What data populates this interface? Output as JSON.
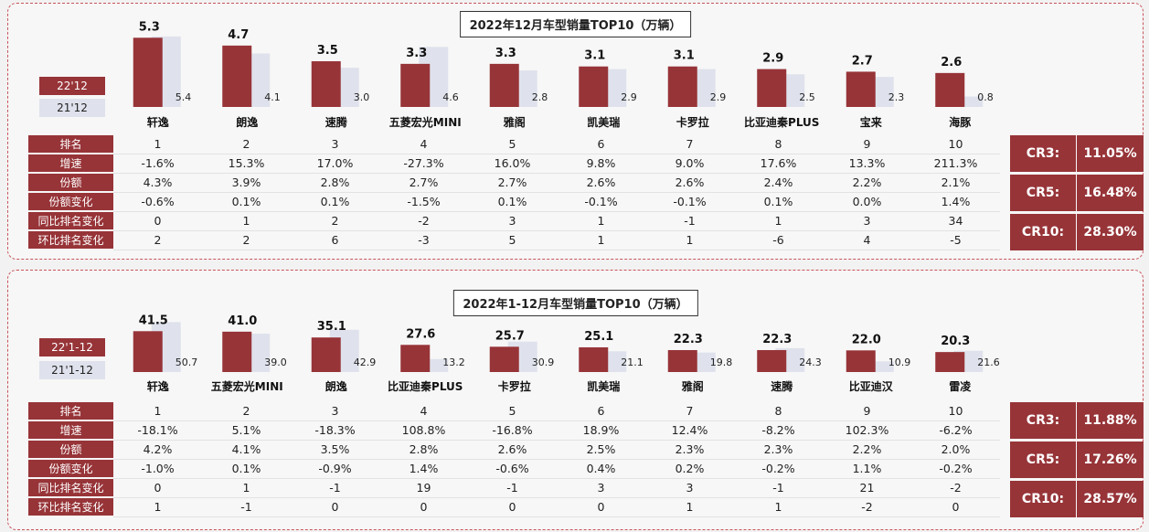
{
  "colors": {
    "current": "#973438",
    "previous": "#dfe2ec"
  },
  "charts": [
    {
      "title": "2022年12月车型销量TOP10（万辆）",
      "legend": {
        "current": "22'12",
        "previous": "21'12"
      },
      "row_labels": [
        "排名",
        "增速",
        "份额",
        "份额变化",
        "同比排名变化",
        "环比排名变化"
      ],
      "rows": [
        [
          "1",
          "2",
          "3",
          "4",
          "5",
          "6",
          "7",
          "8",
          "9",
          "10"
        ],
        [
          "-1.6%",
          "15.3%",
          "17.0%",
          "-27.3%",
          "16.0%",
          "9.8%",
          "9.0%",
          "17.6%",
          "13.3%",
          "211.3%"
        ],
        [
          "4.3%",
          "3.9%",
          "2.8%",
          "2.7%",
          "2.7%",
          "2.6%",
          "2.6%",
          "2.4%",
          "2.2%",
          "2.1%"
        ],
        [
          "-0.6%",
          "0.1%",
          "0.1%",
          "-1.5%",
          "0.1%",
          "-0.1%",
          "-0.1%",
          "0.1%",
          "0.0%",
          "1.4%"
        ],
        [
          "0",
          "1",
          "2",
          "-2",
          "3",
          "1",
          "-1",
          "1",
          "3",
          "34"
        ],
        [
          "2",
          "2",
          "6",
          "-3",
          "5",
          "1",
          "1",
          "-6",
          "4",
          "-5"
        ]
      ],
      "cr": [
        {
          "label": "CR3:",
          "value": "11.05%"
        },
        {
          "label": "CR5:",
          "value": "16.48%"
        },
        {
          "label": "CR10:",
          "value": "28.30%"
        }
      ]
    },
    {
      "title": "2022年1-12月车型销量TOP10（万辆）",
      "legend": {
        "current": "22'1-12",
        "previous": "21'1-12"
      },
      "row_labels": [
        "排名",
        "增速",
        "份额",
        "份额变化",
        "同比排名变化",
        "环比排名变化"
      ],
      "rows": [
        [
          "1",
          "2",
          "3",
          "4",
          "5",
          "6",
          "7",
          "8",
          "9",
          "10"
        ],
        [
          "-18.1%",
          "5.1%",
          "-18.3%",
          "108.8%",
          "-16.8%",
          "18.9%",
          "12.4%",
          "-8.2%",
          "102.3%",
          "-6.2%"
        ],
        [
          "4.2%",
          "4.1%",
          "3.5%",
          "2.8%",
          "2.6%",
          "2.5%",
          "2.3%",
          "2.3%",
          "2.2%",
          "2.0%"
        ],
        [
          "-1.0%",
          "0.1%",
          "-0.9%",
          "1.4%",
          "-0.6%",
          "0.4%",
          "0.2%",
          "-0.2%",
          "1.1%",
          "-0.2%"
        ],
        [
          "0",
          "1",
          "-1",
          "19",
          "-1",
          "3",
          "3",
          "-1",
          "21",
          "-2"
        ],
        [
          "1",
          "-1",
          "0",
          "0",
          "0",
          "0",
          "1",
          "1",
          "-2",
          "0"
        ]
      ],
      "cr": [
        {
          "label": "CR3:",
          "value": "11.88%"
        },
        {
          "label": "CR5:",
          "value": "17.26%"
        },
        {
          "label": "CR10:",
          "value": "28.57%"
        }
      ]
    }
  ],
  "chart_data": [
    {
      "type": "bar",
      "title": "2022年12月车型销量TOP10（万辆）",
      "categories": [
        "轩逸",
        "朗逸",
        "速腾",
        "五菱宏光MINI",
        "雅阁",
        "凯美瑞",
        "卡罗拉",
        "比亚迪秦PLUS",
        "宝来",
        "海豚"
      ],
      "series": [
        {
          "name": "22'12",
          "values": [
            5.3,
            4.7,
            3.5,
            3.3,
            3.3,
            3.1,
            3.1,
            2.9,
            2.7,
            2.6
          ]
        },
        {
          "name": "21'12",
          "values": [
            5.4,
            4.1,
            3.0,
            4.6,
            2.8,
            2.9,
            2.9,
            2.5,
            2.3,
            0.8
          ]
        }
      ],
      "ylim": [
        0,
        5.6
      ]
    },
    {
      "type": "bar",
      "title": "2022年1-12月车型销量TOP10（万辆）",
      "categories": [
        "轩逸",
        "五菱宏光MINI",
        "朗逸",
        "比亚迪秦PLUS",
        "卡罗拉",
        "凯美瑞",
        "雅阁",
        "速腾",
        "比亚迪汉",
        "雷凌"
      ],
      "series": [
        {
          "name": "22'1-12",
          "values": [
            41.5,
            41.0,
            35.1,
            27.6,
            25.7,
            25.1,
            22.3,
            22.3,
            22.0,
            20.3
          ]
        },
        {
          "name": "21'1-12",
          "values": [
            50.7,
            39.0,
            42.9,
            13.2,
            30.9,
            21.1,
            19.8,
            24.3,
            10.9,
            21.6
          ]
        }
      ],
      "ylim": [
        0,
        52
      ]
    }
  ]
}
